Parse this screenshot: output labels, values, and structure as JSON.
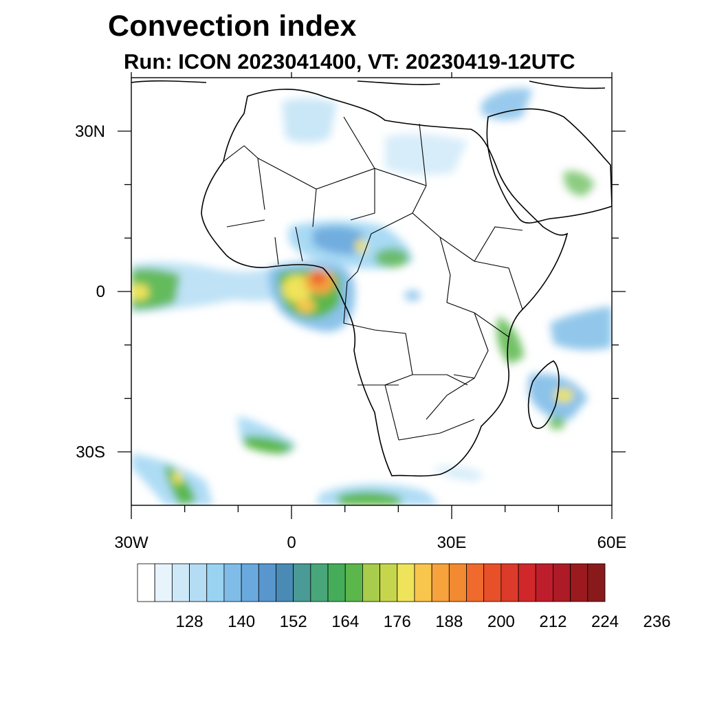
{
  "title": "Convection index",
  "subtitle": "Run: ICON 2023041400,  VT: 20230419-12UTC",
  "map": {
    "lon_range": [
      -30,
      60
    ],
    "lat_range": [
      -40,
      40
    ],
    "x_ticks": [
      {
        "lon": -30,
        "label": "30W"
      },
      {
        "lon": 0,
        "label": "0"
      },
      {
        "lon": 30,
        "label": "30E"
      },
      {
        "lon": 60,
        "label": "60E"
      }
    ],
    "y_ticks": [
      {
        "lat": 30,
        "label": "30N"
      },
      {
        "lat": 0,
        "label": "0"
      },
      {
        "lat": -30,
        "label": "30S"
      }
    ],
    "minor_lon_ticks": [
      -20,
      -10,
      10,
      20,
      40,
      50
    ],
    "minor_lat_ticks": [
      20,
      10,
      -10,
      -20
    ]
  },
  "colorbar": {
    "colors": [
      "#ffffff",
      "#e8f4fb",
      "#cde8f7",
      "#b4ddf4",
      "#9ad3f2",
      "#7fbde8",
      "#6aa9de",
      "#5896cd",
      "#4a8bb6",
      "#4a9a96",
      "#49a67a",
      "#45ad5a",
      "#5bb74b",
      "#a8cc4c",
      "#c6d64c",
      "#eee35a",
      "#f8c54d",
      "#f6a23d",
      "#f28a32",
      "#ef6a2c",
      "#e8502a",
      "#dc3a2a",
      "#d0272b",
      "#be1e2b",
      "#ac1b26",
      "#9a1a20",
      "#891a1c"
    ],
    "labels": [
      "128",
      "140",
      "152",
      "164",
      "176",
      "188",
      "200",
      "212",
      "224",
      "236"
    ]
  }
}
